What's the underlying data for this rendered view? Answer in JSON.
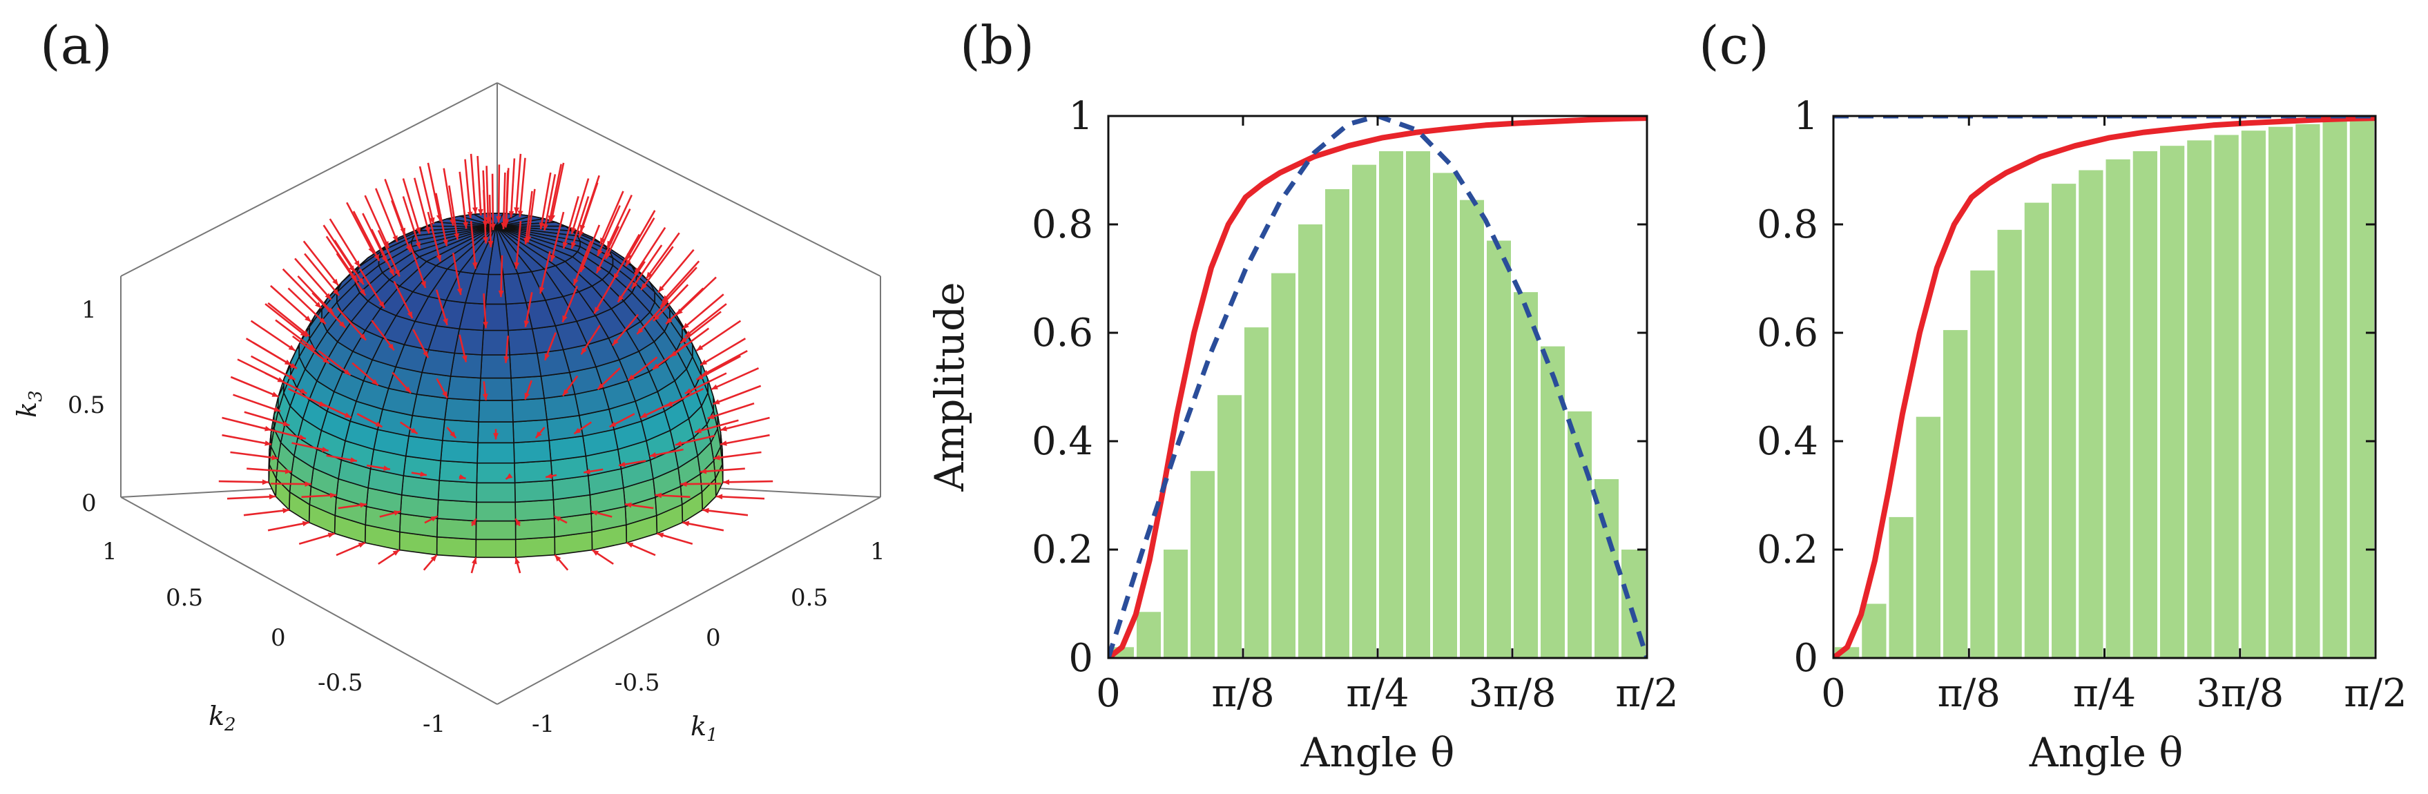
{
  "panels": {
    "a": {
      "label": "(a)",
      "axes": {
        "k1": {
          "label": "k",
          "sub": "1",
          "ticks": [
            "1",
            "0.5",
            "0",
            "-0.5",
            "-1"
          ]
        },
        "k2": {
          "label": "k",
          "sub": "2",
          "ticks": [
            "1",
            "0.5",
            "0",
            "-0.5",
            "-1"
          ]
        },
        "k3": {
          "label": "k",
          "sub": "3",
          "ticks": [
            "1",
            "0.5",
            "0"
          ]
        }
      },
      "colors": {
        "top": "#2a4d9a",
        "mid": "#23a8b2",
        "bottom": "#7ecb5b",
        "arrows": "#e8242a",
        "grid": "#111111"
      }
    },
    "b": {
      "label": "(b)",
      "ylabel": "Amplitude",
      "xlabel": "Angle θ"
    },
    "c": {
      "label": "(c)",
      "xlabel": "Angle θ"
    }
  },
  "chart_data": [
    {
      "type": "bar",
      "panel": "b",
      "title": "",
      "xlabel": "Angle θ",
      "ylabel": "Amplitude",
      "xlim": [
        0,
        1.5708
      ],
      "ylim": [
        0,
        1
      ],
      "xticks": [
        0,
        0.3927,
        0.7854,
        1.1781,
        1.5708
      ],
      "xtick_labels": [
        "0",
        "π/8",
        "π/4",
        "3π/8",
        "π/2"
      ],
      "yticks": [
        0,
        0.2,
        0.4,
        0.6,
        0.8,
        1
      ],
      "ytick_labels": [
        "0",
        "0.2",
        "0.4",
        "0.6",
        "0.8",
        "1"
      ],
      "bars": {
        "count": 20,
        "values": [
          0.02,
          0.085,
          0.2,
          0.345,
          0.485,
          0.61,
          0.71,
          0.8,
          0.865,
          0.91,
          0.935,
          0.935,
          0.895,
          0.845,
          0.77,
          0.675,
          0.575,
          0.455,
          0.33,
          0.2
        ],
        "color": "#a6d88a"
      },
      "series": [
        {
          "name": "red curve",
          "color": "#e8242a",
          "style": "solid",
          "x": [
            0,
            0.04,
            0.08,
            0.12,
            0.16,
            0.2,
            0.25,
            0.3,
            0.35,
            0.4,
            0.45,
            0.5,
            0.6,
            0.7,
            0.8,
            0.9,
            1.0,
            1.1,
            1.2,
            1.3,
            1.4,
            1.5,
            1.5708
          ],
          "y": [
            0,
            0.02,
            0.08,
            0.18,
            0.31,
            0.45,
            0.6,
            0.72,
            0.8,
            0.85,
            0.875,
            0.895,
            0.925,
            0.945,
            0.96,
            0.97,
            0.977,
            0.983,
            0.987,
            0.99,
            0.993,
            0.995,
            0.996
          ]
        },
        {
          "name": "blue dashed",
          "color": "#2a4d9a",
          "style": "dashed",
          "x": [
            0,
            0.1,
            0.2,
            0.3,
            0.4,
            0.5,
            0.6,
            0.7,
            0.7854,
            0.9,
            1.0,
            1.1,
            1.2,
            1.3,
            1.4,
            1.5,
            1.5708
          ],
          "y": [
            0,
            0.199,
            0.389,
            0.565,
            0.717,
            0.841,
            0.932,
            0.985,
            1.0,
            0.974,
            0.909,
            0.808,
            0.675,
            0.516,
            0.335,
            0.141,
            0
          ]
        }
      ]
    },
    {
      "type": "bar",
      "panel": "c",
      "title": "",
      "xlabel": "Angle θ",
      "ylabel": "",
      "xlim": [
        0,
        1.5708
      ],
      "ylim": [
        0,
        1
      ],
      "xticks": [
        0,
        0.3927,
        0.7854,
        1.1781,
        1.5708
      ],
      "xtick_labels": [
        "0",
        "π/8",
        "π/4",
        "3π/8",
        "π/2"
      ],
      "yticks": [
        0,
        0.2,
        0.4,
        0.6,
        0.8,
        1
      ],
      "ytick_labels": [
        "0",
        "0.2",
        "0.4",
        "0.6",
        "0.8",
        "1"
      ],
      "bars": {
        "count": 20,
        "values": [
          0.02,
          0.1,
          0.26,
          0.445,
          0.605,
          0.715,
          0.79,
          0.84,
          0.875,
          0.9,
          0.92,
          0.935,
          0.945,
          0.955,
          0.965,
          0.973,
          0.98,
          0.985,
          0.99,
          0.995
        ],
        "color": "#a6d88a"
      },
      "series": [
        {
          "name": "red curve",
          "color": "#e8242a",
          "style": "solid",
          "x": [
            0,
            0.04,
            0.08,
            0.12,
            0.16,
            0.2,
            0.25,
            0.3,
            0.35,
            0.4,
            0.45,
            0.5,
            0.6,
            0.7,
            0.8,
            0.9,
            1.0,
            1.1,
            1.2,
            1.3,
            1.4,
            1.5,
            1.5708
          ],
          "y": [
            0,
            0.02,
            0.08,
            0.18,
            0.31,
            0.45,
            0.6,
            0.72,
            0.8,
            0.85,
            0.875,
            0.895,
            0.925,
            0.945,
            0.96,
            0.97,
            0.977,
            0.983,
            0.987,
            0.99,
            0.993,
            0.995,
            0.996
          ]
        },
        {
          "name": "blue dashed",
          "color": "#2a4d9a",
          "style": "dashed",
          "x": [
            0,
            1.5708
          ],
          "y": [
            1,
            1
          ]
        }
      ]
    }
  ]
}
